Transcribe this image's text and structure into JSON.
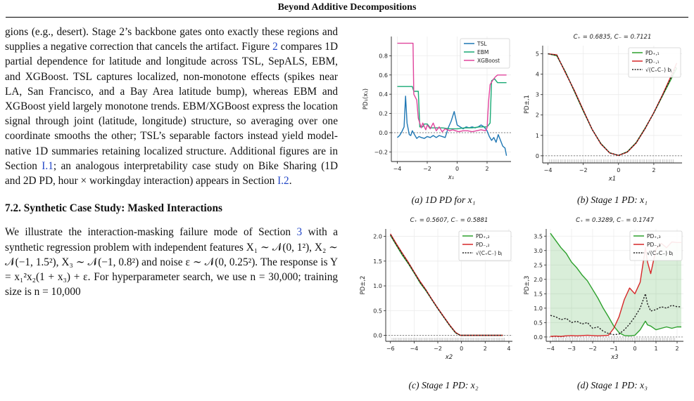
{
  "header": {
    "running_title": "Beyond Additive Decompositions"
  },
  "body": {
    "para1": {
      "s1": "gions (e.g., desert). Stage 2’s backbone gates onto exactly these regions and supplies a negative correction that cancels the artifact. Figure ",
      "fig_ref": "2",
      "s2": " compares 1D partial dependence for latitude and longitude across TSL, SepALS, EBM, and XGBoost. TSL captures localized, non-monotone effects (spikes near LA, San Francisco, and a Bay Area latitude bump), whereas EBM and XGBoost yield largely monotone trends. EBM/XGBoost express the location signal through joint (latitude, longitude) structure, so averaging over one coordinate smooths the other; TSL’s separable factors instead yield model-native 1D summaries retaining localized structure. Additional figures are in Section ",
      "ref_i1": "I.1",
      "s3": "; an analogous interpretability case study on Bike Sharing (1D and 2D PD, hour × workingday interaction) appears in Section ",
      "ref_i2": "I.2",
      "s4": "."
    },
    "section_heading": "7.2. Synthetic Case Study: Masked Interactions",
    "para2": {
      "s1": "We illustrate the interaction-masking failure mode of Section ",
      "ref_3": "3",
      "s2": " with a synthetic regression problem with independent features X₁ ∼ 𝒩(0, 1²), X₂ ∼ 𝒩(−1, 1.5²), X₃ ∼ 𝒩(−1, 0.8²) and noise ε ∼ 𝒩(0, 0.25²). The response is Y = x₁²x₂(1 + x₃) + ε. For hyperparameter search, ",
      "s3": "we use n = 30,000; training size is n = 10,000"
    }
  },
  "figures": {
    "a": {
      "caption_label": "(a)",
      "caption_text": "1D PD for",
      "caption_var": "x₁",
      "ylabel": "PD₁(x₁)",
      "xlabel": "x₁",
      "legend": [
        "TSL",
        "EBM",
        "XGBoost"
      ],
      "series_colors": {
        "TSL": "#1f77b4",
        "EBM": "#19a974",
        "XGBoost": "#e0449c"
      }
    },
    "b": {
      "caption_label": "(b)",
      "caption_text": "Stage 1 PD:",
      "caption_var": "x₁",
      "title": "C₊ = 0.6835, C₋ = 0.7121",
      "ylabel": "PD±,1",
      "xlabel": "x1",
      "legend": [
        "PD₊,₁",
        "PD₋,₁",
        "√(C₊C₋) bⱼ"
      ]
    },
    "c": {
      "caption_label": "(c)",
      "caption_text": "Stage 1 PD:",
      "caption_var": "x₂",
      "title": "C₊ = 0.5607, C₋ = 0.5881",
      "ylabel": "PD±,2",
      "xlabel": "x2",
      "legend": [
        "PD₊,₂",
        "PD₋,₂",
        "√(C₊C₋) bⱼ"
      ]
    },
    "d": {
      "caption_label": "(d)",
      "caption_text": "Stage 1 PD:",
      "caption_var": "x₃",
      "title": "C₊ = 0.3289, C₋ = 0.1747",
      "ylabel": "PD±,3",
      "xlabel": "x3",
      "legend": [
        "PD₊,₃",
        "PD₋,₃",
        "√(C₊C₋) bⱼ"
      ]
    }
  },
  "chart_data": [
    {
      "id": "a",
      "type": "line",
      "xlabel": "x₁",
      "ylabel": "PD₁(x₁)",
      "xlim": [
        -4.4,
        3.6
      ],
      "ylim": [
        -0.3,
        1.0
      ],
      "xticks": [
        -4,
        -2,
        0,
        2
      ],
      "yticks": [
        -0.2,
        0.0,
        0.2,
        0.4,
        0.6,
        0.8
      ],
      "legend_position": "top-right",
      "series": [
        {
          "name": "TSL",
          "color": "#1f77b4",
          "x": [
            -4.0,
            -3.85,
            -3.7,
            -3.55,
            -3.45,
            -3.35,
            -3.2,
            -3.1,
            -3.0,
            -2.85,
            -2.7,
            -2.55,
            -2.4,
            -2.2,
            -2.0,
            -1.8,
            -1.6,
            -1.4,
            -1.2,
            -1.0,
            -0.8,
            -0.6,
            -0.4,
            -0.2,
            0.0,
            0.2,
            0.4,
            0.6,
            0.8,
            1.0,
            1.2,
            1.4,
            1.6,
            1.8,
            2.0,
            2.15,
            2.3,
            2.45,
            2.6,
            2.75,
            2.9,
            3.05,
            3.2,
            3.3
          ],
          "y": [
            -0.05,
            -0.03,
            0.01,
            0.06,
            0.38,
            0.1,
            -0.02,
            -0.03,
            0.02,
            -0.02,
            -0.06,
            -0.04,
            -0.05,
            -0.06,
            -0.04,
            -0.05,
            -0.03,
            -0.05,
            -0.03,
            -0.04,
            -0.05,
            0.05,
            0.12,
            0.22,
            0.08,
            0.06,
            0.04,
            0.06,
            0.05,
            0.06,
            0.05,
            0.06,
            0.08,
            0.06,
            0.02,
            -0.04,
            -0.08,
            -0.05,
            -0.1,
            -0.02,
            -0.08,
            -0.14,
            -0.16,
            -0.24
          ]
        },
        {
          "name": "EBM",
          "color": "#19a974",
          "x": [
            -4.0,
            -3.0,
            -2.9,
            -2.6,
            -2.5,
            -2.3,
            -2.2,
            -2.0,
            -1.8,
            -1.5,
            -1.0,
            -0.5,
            0.0,
            0.5,
            1.0,
            1.5,
            2.0,
            2.2,
            2.3,
            2.5,
            2.7,
            2.9,
            3.3
          ],
          "y": [
            0.48,
            0.48,
            0.43,
            0.43,
            0.06,
            0.06,
            0.09,
            0.09,
            0.05,
            0.05,
            0.05,
            0.04,
            0.04,
            0.05,
            0.05,
            0.06,
            0.06,
            0.1,
            0.54,
            0.56,
            0.52,
            0.52,
            0.52
          ]
        },
        {
          "name": "XGBoost",
          "color": "#e0449c",
          "x": [
            -4.0,
            -2.95,
            -2.9,
            -2.7,
            -2.6,
            -2.4,
            -2.3,
            -2.1,
            -2.0,
            -1.8,
            -1.6,
            -1.4,
            -1.2,
            -1.0,
            -0.8,
            -0.5,
            -0.3,
            -0.1,
            0.1,
            0.4,
            0.7,
            1.0,
            1.3,
            1.6,
            1.9,
            2.0,
            2.1,
            2.2,
            2.4,
            2.55,
            2.7,
            2.8,
            3.3
          ],
          "y": [
            0.93,
            0.93,
            0.4,
            0.34,
            0.15,
            0.05,
            0.1,
            0.03,
            0.08,
            0.04,
            0.1,
            0.02,
            0.06,
            0.01,
            0.04,
            0.02,
            0.03,
            0.02,
            0.01,
            0.02,
            0.02,
            0.01,
            0.02,
            0.03,
            0.02,
            0.05,
            0.32,
            0.5,
            0.55,
            0.58,
            0.6,
            0.6,
            0.6
          ]
        }
      ]
    },
    {
      "id": "b",
      "type": "line",
      "title": "C₊ = 0.6835, C₋ = 0.7121",
      "xlabel": "x1",
      "ylabel": "PD±,1",
      "xlim": [
        -4.3,
        3.6
      ],
      "ylim": [
        -0.35,
        5.4
      ],
      "xticks": [
        -4,
        -2,
        0,
        2
      ],
      "yticks": [
        0,
        1,
        2,
        3,
        4,
        5
      ],
      "legend_position": "top-right",
      "series": [
        {
          "name": "PD₊,₁",
          "color": "#2ca02c",
          "x": [
            -4.0,
            -3.5,
            -3.0,
            -2.5,
            -2.0,
            -1.5,
            -1.0,
            -0.5,
            0.0,
            0.5,
            1.0,
            1.5,
            2.0,
            2.5,
            3.0,
            3.3
          ],
          "y": [
            5.0,
            4.9,
            4.1,
            3.15,
            2.2,
            1.3,
            0.6,
            0.15,
            0.02,
            0.2,
            0.65,
            1.35,
            2.1,
            2.95,
            3.8,
            4.3
          ]
        },
        {
          "name": "PD₋,₁",
          "color": "#d62728",
          "x": [
            -4.0,
            -3.5,
            -3.0,
            -2.5,
            -2.0,
            -1.5,
            -1.0,
            -0.5,
            0.0,
            0.5,
            1.0,
            1.5,
            2.0,
            2.5,
            3.0,
            3.3
          ],
          "y": [
            5.0,
            4.95,
            4.05,
            3.2,
            2.25,
            1.3,
            0.58,
            0.14,
            0.02,
            0.18,
            0.62,
            1.32,
            2.12,
            3.0,
            3.95,
            4.55
          ]
        },
        {
          "name": "√(C₊C₋) bⱼ",
          "color": "#222222",
          "dash": true,
          "x": [
            -4.0,
            -3.5,
            -3.0,
            -2.5,
            -2.0,
            -1.5,
            -1.0,
            -0.5,
            0.0,
            0.5,
            1.0,
            1.5,
            2.0,
            2.5,
            3.0,
            3.3
          ],
          "y": [
            5.0,
            4.92,
            4.08,
            3.17,
            2.22,
            1.3,
            0.59,
            0.14,
            0.02,
            0.19,
            0.63,
            1.33,
            2.11,
            2.97,
            3.88,
            4.42
          ]
        }
      ]
    },
    {
      "id": "c",
      "type": "line",
      "title": "C₊ = 0.5607, C₋ = 0.5881",
      "xlabel": "x2",
      "ylabel": "PD±,2",
      "xlim": [
        -6.4,
        4.3
      ],
      "ylim": [
        -0.12,
        2.15
      ],
      "xticks": [
        -6,
        -4,
        -2,
        0,
        2,
        4
      ],
      "yticks": [
        0.0,
        0.5,
        1.0,
        1.5,
        2.0
      ],
      "legend_position": "top-right",
      "series": [
        {
          "name": "PD₊,₂",
          "color": "#2ca02c",
          "x": [
            -6.0,
            -5.5,
            -5.0,
            -4.5,
            -4.0,
            -3.5,
            -3.0,
            -2.5,
            -2.0,
            -1.5,
            -1.0,
            -0.5,
            -0.1,
            0.0,
            1.0,
            2.0,
            3.5
          ],
          "y": [
            2.02,
            1.82,
            1.62,
            1.45,
            1.26,
            1.06,
            0.9,
            0.72,
            0.54,
            0.37,
            0.2,
            0.05,
            0.0,
            0.0,
            0.0,
            0.0,
            0.0
          ]
        },
        {
          "name": "PD₋,₂",
          "color": "#d62728",
          "x": [
            -6.0,
            -5.5,
            -5.0,
            -4.5,
            -4.0,
            -3.5,
            -3.0,
            -2.5,
            -2.0,
            -1.5,
            -1.0,
            -0.5,
            -0.1,
            0.0,
            1.0,
            2.0,
            3.5
          ],
          "y": [
            2.05,
            1.85,
            1.66,
            1.48,
            1.28,
            1.09,
            0.92,
            0.73,
            0.55,
            0.38,
            0.21,
            0.06,
            0.0,
            0.0,
            0.0,
            0.0,
            0.0
          ]
        },
        {
          "name": "√(C₊C₋) bⱼ",
          "color": "#222222",
          "dash": true,
          "x": [
            -6.0,
            -5.5,
            -5.0,
            -4.5,
            -4.0,
            -3.5,
            -3.0,
            -2.5,
            -2.0,
            -1.5,
            -1.0,
            -0.5,
            -0.1,
            0.0,
            1.0,
            2.0,
            3.5
          ],
          "y": [
            2.03,
            1.83,
            1.64,
            1.46,
            1.27,
            1.07,
            0.91,
            0.72,
            0.54,
            0.37,
            0.2,
            0.05,
            0.0,
            0.0,
            0.0,
            0.0,
            0.0
          ]
        }
      ]
    },
    {
      "id": "d",
      "type": "area",
      "title": "C₊ = 0.3289, C₋ = 0.1747",
      "xlabel": "x3",
      "ylabel": "PD±,3",
      "xlim": [
        -4.2,
        2.3
      ],
      "ylim": [
        -0.15,
        3.75
      ],
      "xticks": [
        -4,
        -3,
        -2,
        -1,
        0,
        1,
        2
      ],
      "yticks": [
        0.0,
        0.5,
        1.0,
        1.5,
        2.0,
        2.5,
        3.0,
        3.5
      ],
      "legend_position": "top-right",
      "series": [
        {
          "name": "PD₊,₃",
          "color": "#2ca02c",
          "fill": "#2ca02c",
          "x": [
            -4.0,
            -3.75,
            -3.5,
            -3.25,
            -3.0,
            -2.75,
            -2.5,
            -2.25,
            -2.0,
            -1.75,
            -1.5,
            -1.25,
            -1.0,
            -0.75,
            -0.5,
            -0.25,
            0.0,
            0.25,
            0.5,
            0.6,
            0.75,
            1.0,
            1.25,
            1.5,
            1.75,
            2.0,
            2.2
          ],
          "y": [
            3.6,
            3.35,
            3.1,
            2.9,
            2.6,
            2.4,
            2.15,
            1.95,
            1.65,
            1.35,
            1.0,
            0.7,
            0.38,
            0.15,
            0.05,
            0.04,
            0.06,
            0.25,
            0.55,
            0.42,
            0.38,
            0.25,
            0.3,
            0.35,
            0.3,
            0.35,
            0.35
          ]
        },
        {
          "name": "PD₋,₃",
          "color": "#d62728",
          "fill": "#d62728",
          "x": [
            -4.0,
            -3.75,
            -3.5,
            -3.25,
            -3.0,
            -2.75,
            -2.5,
            -2.25,
            -2.0,
            -1.75,
            -1.5,
            -1.25,
            -1.0,
            -0.75,
            -0.5,
            -0.25,
            0.0,
            0.25,
            0.5,
            0.6,
            0.75,
            1.0,
            1.25,
            1.5,
            1.75,
            2.0,
            2.2
          ],
          "y": [
            0.02,
            0.03,
            0.02,
            0.04,
            0.05,
            0.04,
            0.05,
            0.06,
            0.05,
            0.04,
            0.05,
            0.06,
            0.3,
            0.7,
            1.3,
            1.7,
            1.5,
            1.9,
            3.1,
            2.6,
            2.2,
            3.05,
            3.25,
            3.1,
            3.3,
            3.28,
            3.28
          ]
        },
        {
          "name": "√(C₊C₋) bⱼ",
          "color": "#222222",
          "dash": true,
          "x": [
            -4.0,
            -3.75,
            -3.5,
            -3.25,
            -3.0,
            -2.75,
            -2.5,
            -2.25,
            -2.0,
            -1.75,
            -1.5,
            -1.25,
            -1.0,
            -0.75,
            -0.5,
            -0.25,
            0.0,
            0.25,
            0.5,
            0.6,
            0.75,
            1.0,
            1.25,
            1.5,
            1.75,
            2.0,
            2.2
          ],
          "y": [
            0.75,
            0.7,
            0.6,
            0.65,
            0.5,
            0.55,
            0.45,
            0.5,
            0.3,
            0.35,
            0.2,
            0.12,
            0.08,
            0.1,
            0.25,
            0.45,
            0.7,
            1.0,
            1.5,
            1.15,
            0.9,
            0.95,
            1.05,
            1.0,
            1.1,
            1.05,
            1.05
          ]
        }
      ]
    }
  ]
}
